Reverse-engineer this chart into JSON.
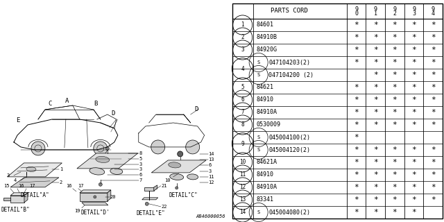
{
  "part_number_label": "AB46000056",
  "bg_color": "#ffffff",
  "header": {
    "parts_cord": "PARTS CORD",
    "year_tops": [
      "9",
      "9",
      "9",
      "9",
      "9"
    ],
    "year_bots": [
      "0",
      "1",
      "2",
      "3",
      "4"
    ]
  },
  "rows": [
    {
      "num": "1",
      "part": "84601",
      "s_prefix": false,
      "stars": [
        1,
        1,
        1,
        1,
        1
      ],
      "paired_with_next": false
    },
    {
      "num": "2",
      "part": "84910B",
      "s_prefix": false,
      "stars": [
        1,
        1,
        1,
        1,
        1
      ],
      "paired_with_next": false
    },
    {
      "num": "3",
      "part": "84920G",
      "s_prefix": false,
      "stars": [
        1,
        1,
        1,
        1,
        1
      ],
      "paired_with_next": false
    },
    {
      "num": "4",
      "part": "047104203(2)",
      "s_prefix": true,
      "stars": [
        1,
        1,
        1,
        1,
        1
      ],
      "paired_with_next": true
    },
    {
      "num": "",
      "part": "047104200 (2)",
      "s_prefix": true,
      "stars": [
        0,
        1,
        1,
        1,
        1
      ],
      "paired_with_next": false
    },
    {
      "num": "5",
      "part": "84621",
      "s_prefix": false,
      "stars": [
        1,
        1,
        1,
        1,
        1
      ],
      "paired_with_next": false
    },
    {
      "num": "6",
      "part": "84910",
      "s_prefix": false,
      "stars": [
        1,
        1,
        1,
        1,
        1
      ],
      "paired_with_next": false
    },
    {
      "num": "7",
      "part": "84910A",
      "s_prefix": false,
      "stars": [
        1,
        1,
        1,
        1,
        1
      ],
      "paired_with_next": false
    },
    {
      "num": "8",
      "part": "0530009",
      "s_prefix": false,
      "stars": [
        1,
        1,
        1,
        1,
        1
      ],
      "paired_with_next": false
    },
    {
      "num": "9",
      "part": "045004100(2)",
      "s_prefix": true,
      "stars": [
        1,
        0,
        0,
        0,
        0
      ],
      "paired_with_next": true
    },
    {
      "num": "",
      "part": "045004120(2)",
      "s_prefix": true,
      "stars": [
        1,
        1,
        1,
        1,
        1
      ],
      "paired_with_next": false
    },
    {
      "num": "10",
      "part": "84621A",
      "s_prefix": false,
      "stars": [
        1,
        1,
        1,
        1,
        1
      ],
      "paired_with_next": false
    },
    {
      "num": "11",
      "part": "84910",
      "s_prefix": false,
      "stars": [
        1,
        1,
        1,
        1,
        1
      ],
      "paired_with_next": false
    },
    {
      "num": "12",
      "part": "84910A",
      "s_prefix": false,
      "stars": [
        1,
        1,
        1,
        1,
        1
      ],
      "paired_with_next": false
    },
    {
      "num": "13",
      "part": "83341",
      "s_prefix": false,
      "stars": [
        1,
        1,
        1,
        1,
        1
      ],
      "paired_with_next": false
    },
    {
      "num": "14",
      "part": "045004080(2)",
      "s_prefix": true,
      "stars": [
        1,
        1,
        1,
        1,
        0
      ],
      "paired_with_next": false
    }
  ]
}
